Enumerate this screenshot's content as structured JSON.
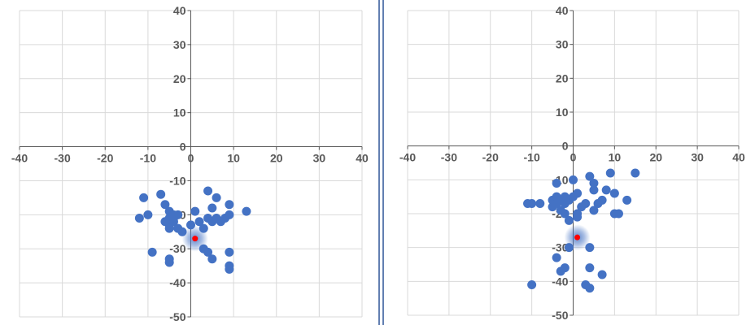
{
  "colors": {
    "point": "#4472c4",
    "highlight": "#ff0000",
    "gridline": "#d9d9d9",
    "axis": "#595959",
    "tick_text": "#595959",
    "divider": "#2f5597",
    "background": "#ffffff"
  },
  "chart_data": [
    {
      "type": "scatter",
      "title": "",
      "xlabel": "",
      "ylabel": "",
      "xlim": [
        -40,
        40
      ],
      "ylim": [
        -50,
        40
      ],
      "xticks": [
        "-40",
        "-30",
        "-20",
        "-10",
        "0",
        "10",
        "20",
        "30",
        "40"
      ],
      "yticks": [
        "40",
        "30",
        "20",
        "10",
        "0",
        "-10",
        "-20",
        "-30",
        "-40",
        "-50"
      ],
      "grid": true,
      "legend": "none",
      "series": [
        {
          "points": [
            [
              -12,
              -21
            ],
            [
              -11,
              -15
            ],
            [
              -10,
              -20
            ],
            [
              -7,
              -14
            ],
            [
              -6,
              -17
            ],
            [
              -5,
              -19
            ],
            [
              -5,
              -21
            ],
            [
              -5,
              -23
            ],
            [
              -4,
              -20
            ],
            [
              -4,
              -22
            ],
            [
              -3,
              -24
            ],
            [
              -3,
              -20
            ],
            [
              -6,
              -22
            ],
            [
              -2,
              -25
            ],
            [
              0,
              -23
            ],
            [
              1,
              -19
            ],
            [
              2,
              -22
            ],
            [
              3,
              -24
            ],
            [
              4,
              -13
            ],
            [
              4,
              -21
            ],
            [
              5,
              -18
            ],
            [
              5,
              -22
            ],
            [
              6,
              -15
            ],
            [
              6,
              -21
            ],
            [
              7,
              -22
            ],
            [
              8,
              -21
            ],
            [
              9,
              -17
            ],
            [
              9,
              -20
            ],
            [
              13,
              -19
            ],
            [
              -9,
              -31
            ],
            [
              -5,
              -34
            ],
            [
              -5,
              -33
            ],
            [
              3,
              -30
            ],
            [
              4,
              -31
            ],
            [
              5,
              -33
            ],
            [
              9,
              -31
            ],
            [
              9,
              -35
            ],
            [
              9,
              -36
            ],
            [
              -4,
              -21
            ],
            [
              -5,
              -24
            ]
          ]
        },
        {
          "name": "highlight",
          "points": [
            [
              1,
              -27
            ]
          ]
        }
      ]
    },
    {
      "type": "scatter",
      "title": "",
      "xlabel": "",
      "ylabel": "",
      "xlim": [
        -40,
        40
      ],
      "ylim": [
        -50,
        40
      ],
      "xticks": [
        "-40",
        "-30",
        "-20",
        "-10",
        "0",
        "10",
        "20",
        "30",
        "40"
      ],
      "yticks": [
        "40",
        "30",
        "20",
        "10",
        "0",
        "-10",
        "-20",
        "-30",
        "-40",
        "-50"
      ],
      "grid": true,
      "legend": "none",
      "series": [
        {
          "points": [
            [
              -11,
              -17
            ],
            [
              -10,
              -17
            ],
            [
              -8,
              -17
            ],
            [
              -5,
              -16
            ],
            [
              -5,
              -18
            ],
            [
              -4,
              -15
            ],
            [
              -4,
              -17
            ],
            [
              -4,
              -11
            ],
            [
              -3,
              -16
            ],
            [
              -3,
              -19
            ],
            [
              -2,
              -15
            ],
            [
              -2,
              -17
            ],
            [
              -1,
              -16
            ],
            [
              -1,
              -22
            ],
            [
              0,
              -15
            ],
            [
              0,
              -10
            ],
            [
              1,
              -20
            ],
            [
              1,
              -21
            ],
            [
              1,
              -14
            ],
            [
              2,
              -18
            ],
            [
              3,
              -17
            ],
            [
              4,
              -9
            ],
            [
              5,
              -11
            ],
            [
              5,
              -13
            ],
            [
              5,
              -19
            ],
            [
              6,
              -17
            ],
            [
              7,
              -16
            ],
            [
              8,
              -13
            ],
            [
              9,
              -8
            ],
            [
              10,
              -14
            ],
            [
              10,
              -20
            ],
            [
              11,
              -20
            ],
            [
              13,
              -16
            ],
            [
              15,
              -8
            ],
            [
              -2,
              -20
            ],
            [
              -4,
              -33
            ],
            [
              -3,
              -37
            ],
            [
              -2,
              -36
            ],
            [
              -10,
              -41
            ],
            [
              3,
              -41
            ],
            [
              4,
              -42
            ],
            [
              4,
              -36
            ],
            [
              4,
              -30
            ],
            [
              7,
              -38
            ],
            [
              -1,
              -30
            ]
          ]
        },
        {
          "name": "highlight",
          "points": [
            [
              1,
              -27
            ]
          ]
        }
      ]
    }
  ]
}
